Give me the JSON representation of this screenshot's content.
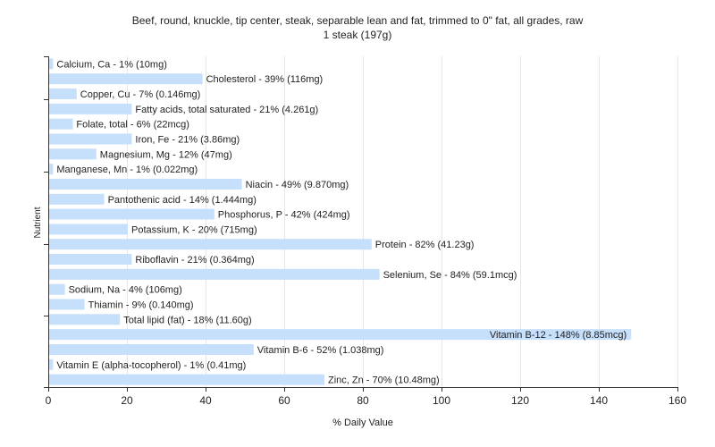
{
  "chart_data": {
    "type": "bar",
    "orientation": "horizontal",
    "title": "Beef, round, knuckle, tip center, steak, separable lean and fat, trimmed to 0\" fat, all grades, raw",
    "subtitle": "1 steak (197g)",
    "xlabel": "% Daily Value",
    "ylabel": "Nutrient",
    "xlim": [
      0,
      160
    ],
    "xticks": [
      0,
      20,
      40,
      60,
      80,
      100,
      120,
      140,
      160
    ],
    "grid": true,
    "bar_color": "#c6dffb",
    "categories": [
      "Calcium, Ca",
      "Cholesterol",
      "Copper, Cu",
      "Fatty acids, total saturated",
      "Folate, total",
      "Iron, Fe",
      "Magnesium, Mg",
      "Manganese, Mn",
      "Niacin",
      "Pantothenic acid",
      "Phosphorus, P",
      "Potassium, K",
      "Protein",
      "Riboflavin",
      "Selenium, Se",
      "Sodium, Na",
      "Thiamin",
      "Total lipid (fat)",
      "Vitamin B-12",
      "Vitamin B-6",
      "Vitamin E (alpha-tocopherol)",
      "Zinc, Zn"
    ],
    "values": [
      1,
      39,
      7,
      21,
      6,
      21,
      12,
      1,
      49,
      14,
      42,
      20,
      82,
      21,
      84,
      4,
      9,
      18,
      148,
      52,
      1,
      70
    ],
    "labels": [
      "Calcium, Ca - 1% (10mg)",
      "Cholesterol - 39% (116mg)",
      "Copper, Cu - 7% (0.146mg)",
      "Fatty acids, total saturated - 21% (4.261g)",
      "Folate, total - 6% (22mcg)",
      "Iron, Fe - 21% (3.86mg)",
      "Magnesium, Mg - 12% (47mg)",
      "Manganese, Mn - 1% (0.022mg)",
      "Niacin - 49% (9.870mg)",
      "Pantothenic acid - 14% (1.444mg)",
      "Phosphorus, P - 42% (424mg)",
      "Potassium, K - 20% (715mg)",
      "Protein - 82% (41.23g)",
      "Riboflavin - 21% (0.364mg)",
      "Selenium, Se - 84% (59.1mcg)",
      "Sodium, Na - 4% (106mg)",
      "Thiamin - 9% (0.140mg)",
      "Total lipid (fat) - 18% (11.60g)",
      "Vitamin B-12 - 148% (8.85mcg)",
      "Vitamin B-6 - 52% (1.038mg)",
      "Vitamin E (alpha-tocopherol) - 1% (0.41mg)",
      "Zinc, Zn - 70% (10.48mg)"
    ]
  }
}
